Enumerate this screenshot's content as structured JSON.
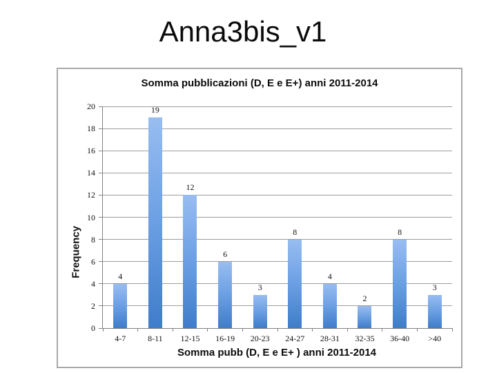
{
  "slide": {
    "title": "Anna3bis_v1",
    "background_color": "#ffffff"
  },
  "chart_data": {
    "type": "bar",
    "title": "Somma pubblicazioni (D, E e E+)  anni 2011-2014",
    "categories": [
      "4-7",
      "8-11",
      "12-15",
      "16-19",
      "20-23",
      "24-27",
      "28-31",
      "32-35",
      "36-40",
      ">40"
    ],
    "values": [
      4,
      19,
      12,
      6,
      3,
      8,
      4,
      2,
      8,
      3
    ],
    "xlabel": "Somma pubb (D, E e E+ )  anni 2011-2014",
    "ylabel": "Frequency",
    "ylim": [
      0,
      20
    ],
    "ytick_step": 2,
    "grid": "horizontal-only",
    "legend": "none",
    "data_labels": "above-bars",
    "bar_color_top": "#98bdf1",
    "bar_color_bottom": "#3f7cca",
    "gridline_color": "#9c9c9c",
    "axis_color": "#7f7f7f",
    "frame_border_color": "#a8a8a8"
  }
}
